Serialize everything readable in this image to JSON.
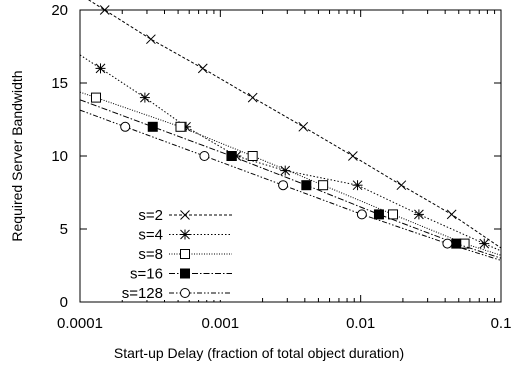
{
  "chart_data": {
    "type": "line",
    "title": "",
    "xlabel": "Start-up Delay (fraction of total object duration)",
    "ylabel": "Required Server Bandwidth",
    "xscale": "log",
    "xlim": [
      0.0001,
      0.1
    ],
    "ylim": [
      0,
      20
    ],
    "x_ticks": [
      "0.0001",
      "0.001",
      "0.01",
      "0.1"
    ],
    "y_ticks": [
      "0",
      "5",
      "10",
      "15",
      "20"
    ],
    "grid": false,
    "legend_position": "bottom-left",
    "series": [
      {
        "name": "s=2",
        "marker": "x",
        "dash": "3,2",
        "points": [
          [
            0.00015,
            20
          ],
          [
            0.00032,
            18
          ],
          [
            0.00075,
            16
          ],
          [
            0.0017,
            14
          ],
          [
            0.0039,
            12
          ],
          [
            0.0088,
            10
          ],
          [
            0.0195,
            8
          ],
          [
            0.0445,
            6
          ]
        ],
        "line_end": [
          0.1,
          3.7
        ]
      },
      {
        "name": "s=4",
        "marker": "asterisk",
        "dash": "1.5,2",
        "points": [
          [
            0.00014,
            16
          ],
          [
            0.00029,
            14
          ],
          [
            0.00057,
            12
          ],
          [
            0.0013,
            10
          ],
          [
            0.0029,
            9
          ],
          [
            0.0095,
            8
          ],
          [
            0.026,
            6
          ],
          [
            0.076,
            4
          ]
        ],
        "line_end": [
          0.1,
          3.5
        ]
      },
      {
        "name": "s=8",
        "marker": "square-open",
        "dash": "1,1.5",
        "points": [
          [
            0.00013,
            14
          ],
          [
            0.00052,
            12
          ],
          [
            0.0017,
            10
          ],
          [
            0.0054,
            8
          ],
          [
            0.017,
            6
          ],
          [
            0.055,
            4
          ]
        ],
        "line_end": [
          0.1,
          3.2
        ]
      },
      {
        "name": "s=16",
        "marker": "square-filled",
        "dash": "6,2,1.5,2",
        "points": [
          [
            0.00033,
            12
          ],
          [
            0.0012,
            10
          ],
          [
            0.0041,
            8
          ],
          [
            0.0135,
            6
          ],
          [
            0.048,
            4
          ]
        ],
        "line_end": [
          0.1,
          3.0
        ]
      },
      {
        "name": "s=128",
        "marker": "circle-open",
        "dash": "5,2,1.5,2,1.5,2",
        "points": [
          [
            0.00021,
            12
          ],
          [
            0.00077,
            10
          ],
          [
            0.0028,
            8
          ],
          [
            0.0102,
            6
          ],
          [
            0.0415,
            4
          ]
        ],
        "line_end": [
          0.1,
          2.85
        ]
      }
    ]
  }
}
